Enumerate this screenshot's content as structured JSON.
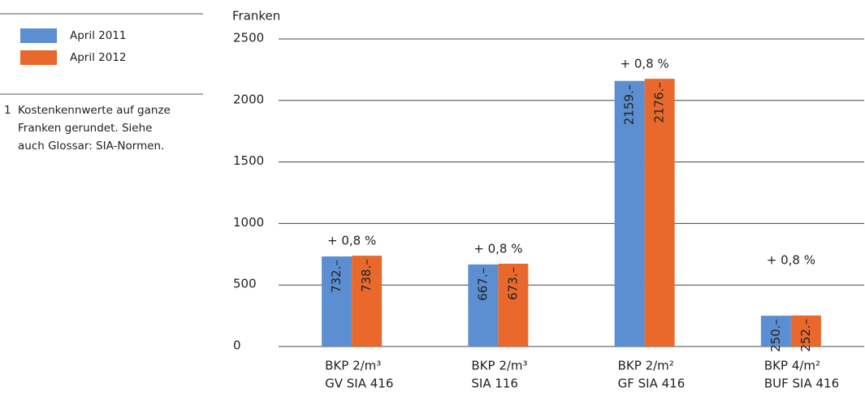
{
  "chart_data": {
    "type": "bar",
    "y_label": "Franken",
    "categories": [
      [
        "BKP 2/m³",
        "GV SIA 416"
      ],
      [
        "BKP 2/m³",
        "SIA 116"
      ],
      [
        "BKP 2/m²",
        "GF SIA 416"
      ],
      [
        "BKP 4/m²",
        "BUF SIA 416"
      ]
    ],
    "series": [
      {
        "name": "April 2011",
        "color": "#5b8fd1",
        "values": [
          732,
          667,
          2159,
          250
        ],
        "value_labels": [
          "732.–",
          "667.–",
          "2159.–",
          "250.–"
        ]
      },
      {
        "name": "April 2012",
        "color": "#e8692b",
        "values": [
          738,
          673,
          2176,
          252
        ],
        "value_labels": [
          "738.–",
          "673.–",
          "2176.–",
          "252.–"
        ]
      }
    ],
    "annotations": [
      "+ 0,8 %",
      "+ 0,8 %",
      "+ 0,8 %",
      "+ 0,8 %"
    ],
    "ylim": [
      0,
      2500
    ],
    "yticks": [
      0,
      500,
      1000,
      1500,
      2000,
      2500
    ],
    "grid": true,
    "footnote": {
      "number": "1",
      "lines": [
        "Kostenkennwerte auf ganze",
        "Franken gerundet. Siehe",
        "auch Glossar: SIA-Normen."
      ]
    }
  }
}
